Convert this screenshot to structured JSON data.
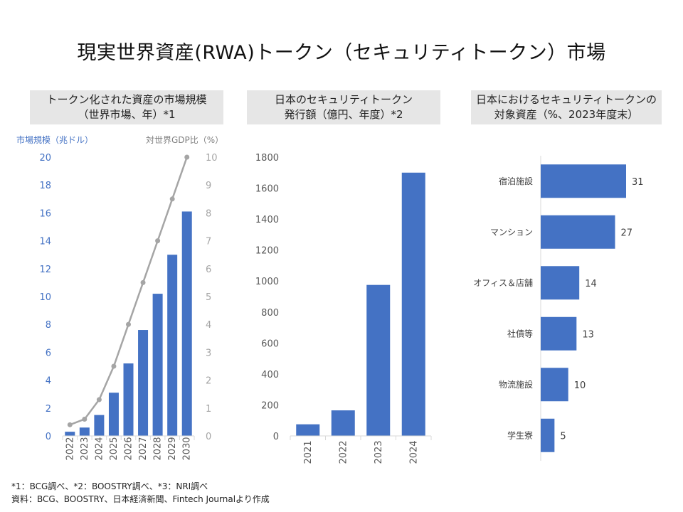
{
  "title": "現実世界資産(RWA)トークン（セキュリティトークン）市場",
  "colors": {
    "bar": "#4472c4",
    "line": "#a5a5a5",
    "axis_blue": "#4472c4",
    "axis_gray": "#a5a5a5",
    "grid": "#d9d9d9",
    "panel_bg": "#e6e6e6"
  },
  "chart_data": [
    {
      "type": "bar",
      "title_lines": [
        "トークン化された資産の市場規模",
        "（世界市場、年）*1"
      ],
      "ylabel": "市場規模（兆ドル）",
      "y2label": "対世界GDP比（%）",
      "categories": [
        "2022",
        "2023",
        "2024",
        "2025",
        "2026",
        "2027",
        "2028",
        "2029",
        "2030"
      ],
      "ylim": [
        0,
        20
      ],
      "yticks": [
        "0",
        "2",
        "4",
        "6",
        "8",
        "10",
        "12",
        "14",
        "16",
        "18",
        "20"
      ],
      "y2lim": [
        0,
        10
      ],
      "y2ticks": [
        "0",
        "1",
        "2",
        "3",
        "4",
        "5",
        "6",
        "7",
        "8",
        "9",
        "10"
      ],
      "series": [
        {
          "name": "市場規模（兆ドル）",
          "type": "bar",
          "axis": "left",
          "values": [
            0.3,
            0.6,
            1.5,
            3.1,
            5.2,
            7.6,
            10.2,
            13.0,
            16.1
          ]
        },
        {
          "name": "対世界GDP比（%）",
          "type": "line",
          "axis": "right",
          "values": [
            0.4,
            0.6,
            1.3,
            2.5,
            4.0,
            5.5,
            7.0,
            8.5,
            10.0
          ]
        }
      ]
    },
    {
      "type": "bar",
      "title_lines": [
        "日本のセキュリティトークン",
        "発行額（億円、年度）*2"
      ],
      "categories": [
        "2021",
        "2022",
        "2023",
        "2024"
      ],
      "ylim": [
        0,
        1800
      ],
      "yticks": [
        "0",
        "200",
        "400",
        "600",
        "800",
        "1000",
        "1200",
        "1400",
        "1600",
        "1800"
      ],
      "values": [
        75,
        165,
        975,
        1700
      ]
    },
    {
      "type": "bar",
      "orientation": "horizontal",
      "title_lines": [
        "日本におけるセキュリティトークンの",
        "対象資産（%、2023年度末）"
      ],
      "categories": [
        "宿泊施設",
        "マンション",
        "オフィス＆店舗",
        "社債等",
        "物流施設",
        "学生寮"
      ],
      "values": [
        31,
        27,
        14,
        13,
        10,
        5
      ],
      "labels": [
        "31",
        "27",
        "14",
        "13",
        "10",
        "5"
      ],
      "xlim": [
        0,
        31
      ]
    }
  ],
  "footnotes": [
    "*1：BCG調べ、*2：BOOSTRY調べ、*3：NRI調べ",
    "資料：BCG、BOOSTRY、日本経済新聞、Fintech Journalより作成"
  ]
}
